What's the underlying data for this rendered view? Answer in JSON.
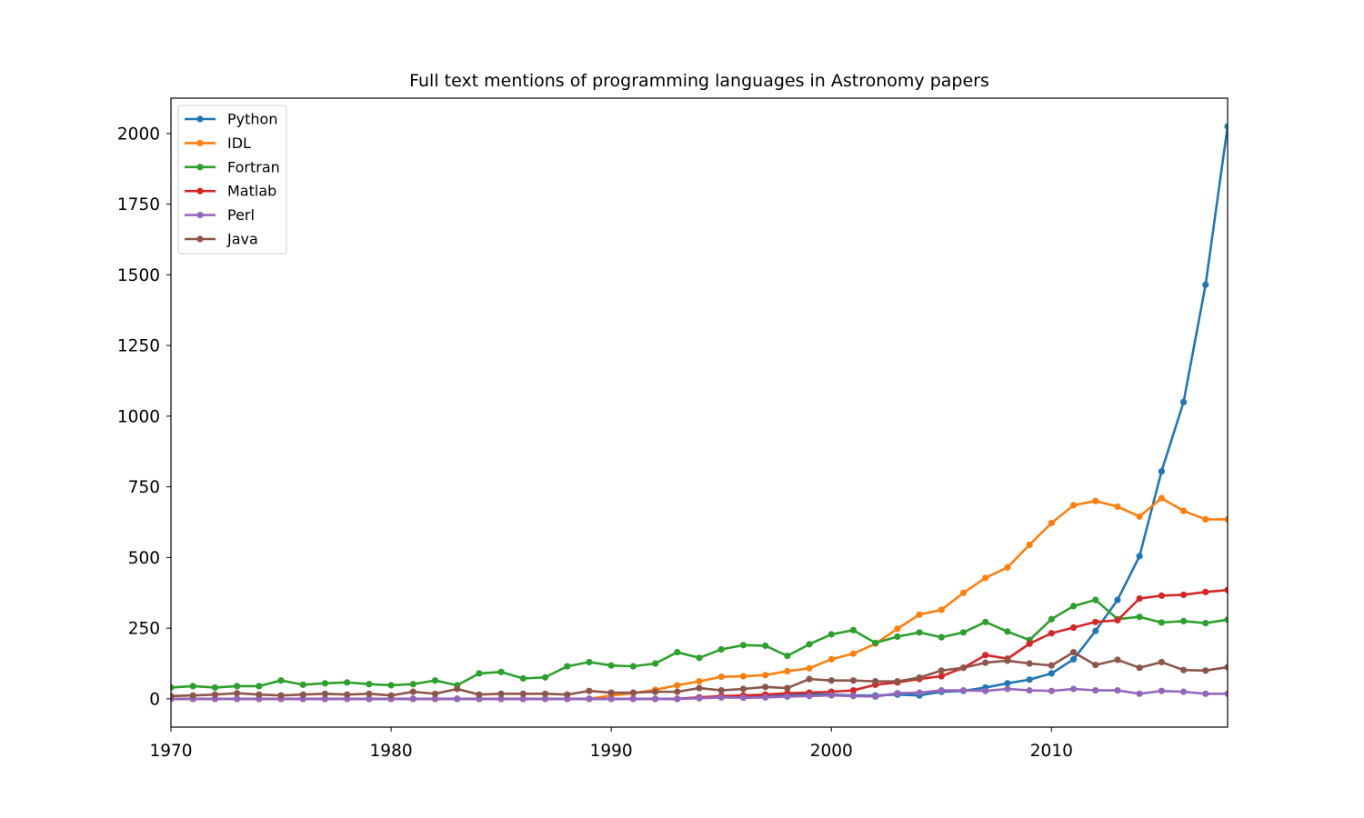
{
  "chart_data": {
    "type": "line",
    "title": "Full text mentions of programming languages in Astronomy papers",
    "xlabel": "",
    "ylabel": "",
    "xlim": [
      1970,
      2018
    ],
    "ylim": [
      -100,
      2125
    ],
    "xticks": [
      1970,
      1980,
      1990,
      2000,
      2010
    ],
    "yticks": [
      0,
      250,
      500,
      750,
      1000,
      1250,
      1500,
      1750,
      2000
    ],
    "grid": false,
    "legend_position": "top-left",
    "x": [
      1970,
      1971,
      1972,
      1973,
      1974,
      1975,
      1976,
      1977,
      1978,
      1979,
      1980,
      1981,
      1982,
      1983,
      1984,
      1985,
      1986,
      1987,
      1988,
      1989,
      1990,
      1991,
      1992,
      1993,
      1994,
      1995,
      1996,
      1997,
      1998,
      1999,
      2000,
      2001,
      2002,
      2003,
      2004,
      2005,
      2006,
      2007,
      2008,
      2009,
      2010,
      2011,
      2012,
      2013,
      2014,
      2015,
      2016,
      2017,
      2018
    ],
    "series": [
      {
        "name": "Python",
        "color": "#1f77b4",
        "values": [
          0,
          0,
          0,
          0,
          0,
          0,
          0,
          0,
          0,
          0,
          0,
          0,
          0,
          0,
          0,
          0,
          0,
          0,
          0,
          0,
          0,
          0,
          0,
          0,
          5,
          8,
          8,
          10,
          12,
          15,
          15,
          12,
          12,
          15,
          12,
          25,
          28,
          40,
          55,
          68,
          90,
          140,
          240,
          350,
          505,
          805,
          1050,
          1465,
          2025
        ]
      },
      {
        "name": "IDL",
        "color": "#ff7f0e",
        "values": [
          0,
          0,
          0,
          0,
          0,
          0,
          0,
          0,
          0,
          0,
          0,
          0,
          0,
          0,
          0,
          0,
          0,
          0,
          0,
          0,
          12,
          20,
          32,
          48,
          62,
          78,
          80,
          84,
          98,
          108,
          140,
          160,
          195,
          248,
          298,
          315,
          375,
          428,
          465,
          545,
          622,
          685,
          700,
          680,
          645,
          710,
          665,
          635,
          635
        ]
      },
      {
        "name": "Fortran",
        "color": "#2ca02c",
        "values": [
          40,
          45,
          40,
          45,
          45,
          65,
          50,
          55,
          58,
          52,
          48,
          52,
          65,
          48,
          90,
          95,
          72,
          76,
          115,
          130,
          118,
          115,
          125,
          165,
          145,
          175,
          190,
          188,
          152,
          193,
          228,
          243,
          198,
          220,
          235,
          218,
          235,
          272,
          238,
          208,
          282,
          328,
          350,
          282,
          290,
          270,
          275,
          268,
          280
        ]
      },
      {
        "name": "Matlab",
        "color": "#d62728",
        "values": [
          0,
          0,
          0,
          0,
          0,
          0,
          0,
          0,
          0,
          0,
          0,
          0,
          0,
          0,
          0,
          0,
          0,
          0,
          0,
          0,
          0,
          0,
          0,
          0,
          5,
          10,
          12,
          15,
          20,
          22,
          25,
          30,
          50,
          58,
          70,
          80,
          110,
          155,
          142,
          195,
          232,
          252,
          272,
          278,
          355,
          365,
          368,
          378,
          385
        ]
      },
      {
        "name": "Perl",
        "color": "#9467bd",
        "values": [
          0,
          0,
          0,
          0,
          0,
          0,
          0,
          0,
          0,
          0,
          0,
          0,
          0,
          0,
          0,
          0,
          0,
          0,
          0,
          0,
          0,
          0,
          0,
          0,
          2,
          5,
          4,
          5,
          8,
          10,
          12,
          10,
          8,
          20,
          22,
          30,
          30,
          28,
          35,
          30,
          28,
          35,
          30,
          30,
          18,
          28,
          25,
          18,
          18
        ]
      },
      {
        "name": "Java",
        "color": "#8c564b",
        "values": [
          10,
          12,
          15,
          20,
          15,
          12,
          15,
          18,
          15,
          18,
          12,
          25,
          18,
          35,
          15,
          18,
          18,
          18,
          15,
          28,
          22,
          22,
          25,
          25,
          38,
          30,
          35,
          42,
          38,
          70,
          65,
          65,
          62,
          62,
          75,
          100,
          110,
          128,
          135,
          125,
          118,
          165,
          120,
          138,
          110,
          130,
          102,
          100,
          112
        ]
      }
    ]
  }
}
